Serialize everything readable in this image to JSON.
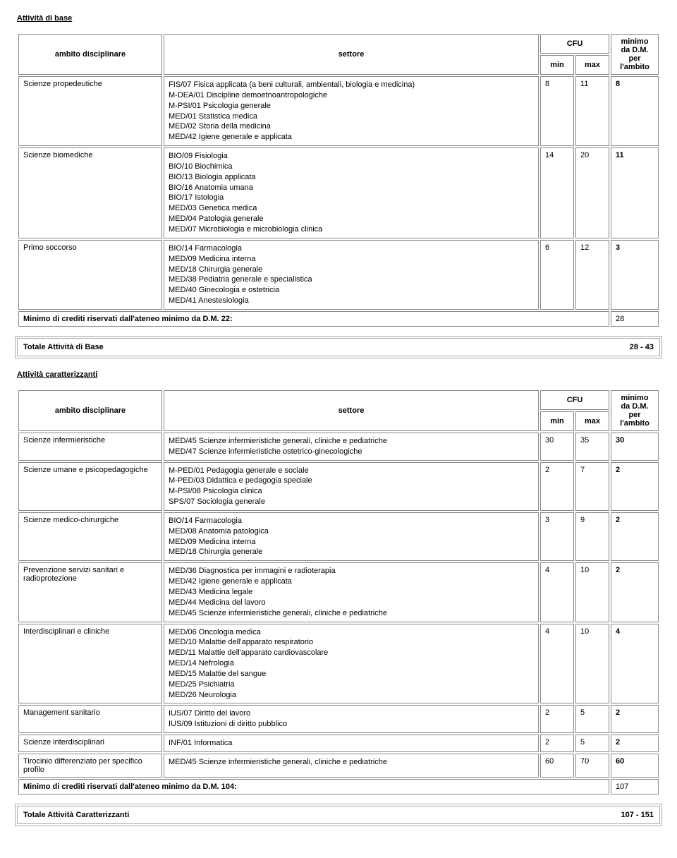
{
  "section1": {
    "title": "Attività di base",
    "headers": {
      "ambito": "ambito disciplinare",
      "settore": "settore",
      "cfu": "CFU",
      "min": "min",
      "max": "max",
      "minimo": "minimo da D.M. per l'ambito"
    },
    "rows": [
      {
        "ambito": "Scienze propedeutiche",
        "settore": "FIS/07 Fisica applicata (a beni culturali, ambientali, biologia e medicina)\nM-DEA/01 Discipline demoetnoantropologiche\nM-PSI/01 Psicologia generale\nMED/01 Statistica medica\nMED/02 Storia della medicina\nMED/42 Igiene generale e applicata",
        "min": "8",
        "max": "11",
        "minimo": "8"
      },
      {
        "ambito": "Scienze biomediche",
        "settore": "BIO/09 Fisiologia\nBIO/10 Biochimica\nBIO/13 Biologia applicata\nBIO/16 Anatomia umana\nBIO/17 Istologia\nMED/03 Genetica medica\nMED/04 Patologia generale\nMED/07 Microbiologia e microbiologia clinica",
        "min": "14",
        "max": "20",
        "minimo": "11"
      },
      {
        "ambito": "Primo soccorso",
        "settore": "BIO/14 Farmacologia\nMED/09 Medicina interna\nMED/18 Chirurgia generale\nMED/38 Pediatria generale e specialistica\nMED/40 Ginecologia e ostetricia\nMED/41 Anestesiologia",
        "min": "6",
        "max": "12",
        "minimo": "3"
      }
    ],
    "caption": "Minimo di crediti riservati dall'ateneo minimo da D.M. 22:",
    "caption_val": "28",
    "total_label": "Totale Attività di Base",
    "total_val": "28 - 43"
  },
  "section2": {
    "title": "Attività caratterizzanti",
    "headers": {
      "ambito": "ambito disciplinare",
      "settore": "settore",
      "cfu": "CFU",
      "min": "min",
      "max": "max",
      "minimo": "minimo da D.M. per l'ambito"
    },
    "rows": [
      {
        "ambito": "Scienze infermieristiche",
        "settore": "MED/45 Scienze infermieristiche generali, cliniche e pediatriche\nMED/47 Scienze infermieristiche ostetrico-ginecologiche",
        "min": "30",
        "max": "35",
        "minimo": "30"
      },
      {
        "ambito": "Scienze umane e psicopedagogiche",
        "settore": "M-PED/01 Pedagogia generale e sociale\nM-PED/03 Didattica e pedagogia speciale\nM-PSI/08 Psicologia clinica\nSPS/07 Sociologia generale",
        "min": "2",
        "max": "7",
        "minimo": "2"
      },
      {
        "ambito": "Scienze medico-chirurgiche",
        "settore": "BIO/14 Farmacologia\nMED/08 Anatomia patologica\nMED/09 Medicina interna\nMED/18 Chirurgia generale",
        "min": "3",
        "max": "9",
        "minimo": "2"
      },
      {
        "ambito": "Prevenzione servizi sanitari e radioprotezione",
        "settore": "MED/36 Diagnostica per immagini e radioterapia\nMED/42 Igiene generale e applicata\nMED/43 Medicina legale\nMED/44 Medicina del lavoro\nMED/45 Scienze infermieristiche generali, cliniche e pediatriche",
        "min": "4",
        "max": "10",
        "minimo": "2"
      },
      {
        "ambito": "Interdisciplinari e cliniche",
        "settore": "MED/06 Oncologia medica\nMED/10 Malattie dell'apparato respiratorio\nMED/11 Malattie dell'apparato cardiovascolare\nMED/14 Nefrologia\nMED/15 Malattie del sangue\nMED/25 Psichiatria\nMED/26 Neurologia",
        "min": "4",
        "max": "10",
        "minimo": "4"
      },
      {
        "ambito": "Management sanitario",
        "settore": "IUS/07 Diritto del lavoro\nIUS/09 Istituzioni di diritto pubblico",
        "min": "2",
        "max": "5",
        "minimo": "2"
      },
      {
        "ambito": "Scienze interdisciplinari",
        "settore": "INF/01 Informatica",
        "min": "2",
        "max": "5",
        "minimo": "2"
      },
      {
        "ambito": "Tirocinio differenziato per specifico profilo",
        "settore": "MED/45 Scienze infermieristiche generali, cliniche e pediatriche",
        "min": "60",
        "max": "70",
        "minimo": "60"
      }
    ],
    "caption": "Minimo di crediti riservati dall'ateneo minimo da D.M. 104:",
    "caption_val": "107",
    "total_label": "Totale Attività Caratterizzanti",
    "total_val": "107 - 151"
  }
}
